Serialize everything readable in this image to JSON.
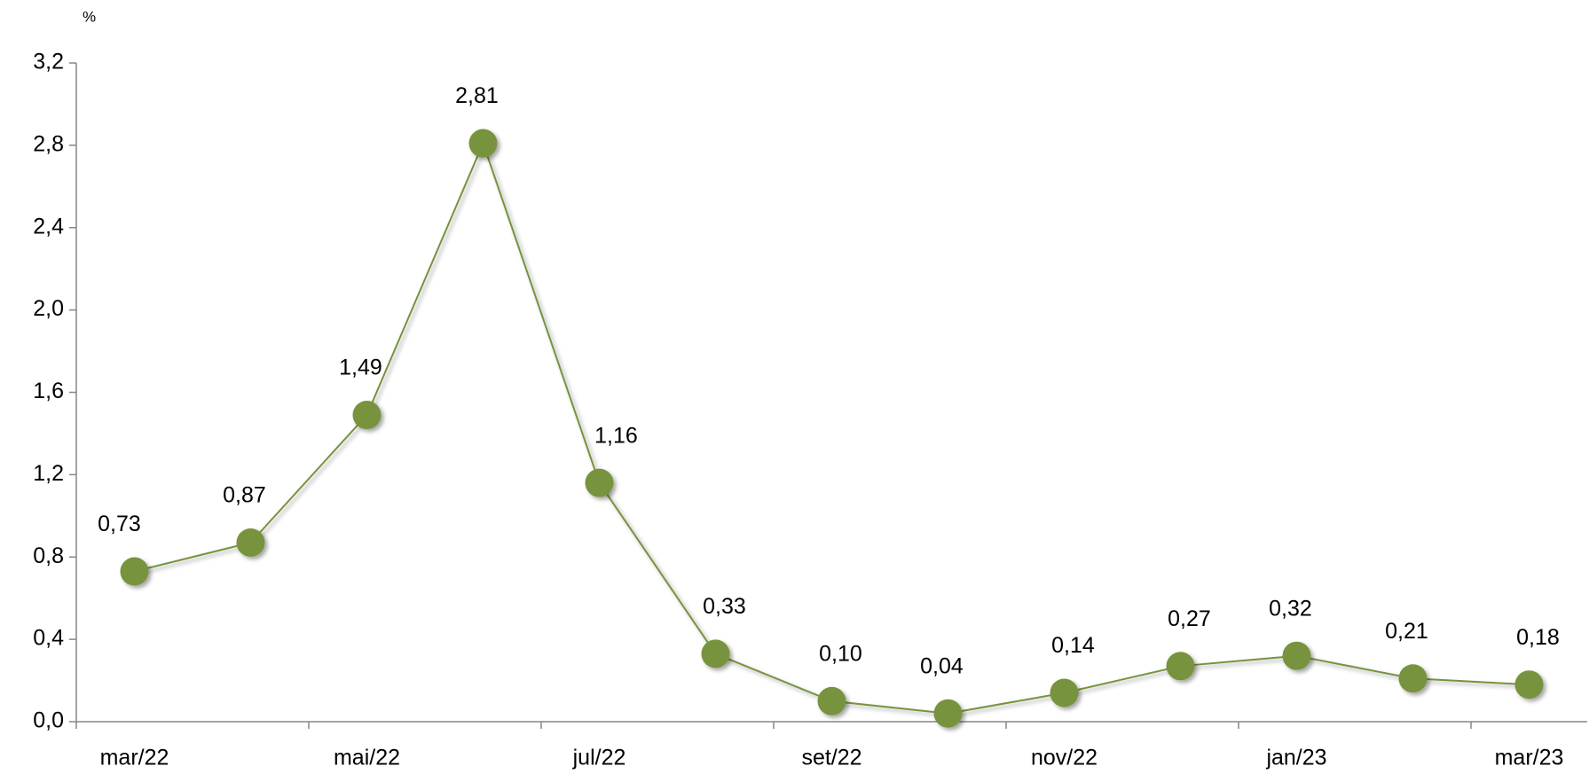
{
  "chart_data": {
    "type": "line",
    "unit_label": "%",
    "categories": [
      "mar/22",
      null,
      "mai/22",
      null,
      "jul/22",
      null,
      "set/22",
      null,
      "nov/22",
      null,
      "jan/23",
      null,
      "mar/23"
    ],
    "series": [
      {
        "color": "#77933c",
        "values": [
          0.73,
          0.87,
          1.49,
          2.81,
          1.16,
          0.33,
          0.1,
          0.04,
          0.14,
          0.27,
          0.32,
          0.21,
          0.18
        ],
        "value_labels": [
          "0,73",
          "0,87",
          "1,49",
          "2,81",
          "1,16",
          "0,33",
          "0,10",
          "0,04",
          "0,14",
          "0,27",
          "0,32",
          "0,21",
          "0,18"
        ]
      }
    ],
    "ylim": [
      0,
      3.2
    ],
    "yticks": [
      {
        "value": 0,
        "label": "0,0"
      },
      {
        "value": 0.4,
        "label": "0,4"
      },
      {
        "value": 0.8,
        "label": "0,8"
      },
      {
        "value": 1.2,
        "label": "1,2"
      },
      {
        "value": 1.6,
        "label": "1,6"
      },
      {
        "value": 2.0,
        "label": "2,0"
      },
      {
        "value": 2.4,
        "label": "2,4"
      },
      {
        "value": 2.8,
        "label": "2,8"
      },
      {
        "value": 3.2,
        "label": "3,2"
      }
    ],
    "grid": false
  }
}
